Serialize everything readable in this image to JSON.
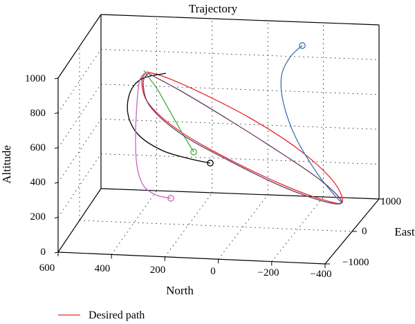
{
  "chart_data": {
    "type": "line",
    "title": "Trajectory",
    "axes": {
      "z_label": "Altitude",
      "x_label": "North",
      "y_label": "East",
      "z_ticks": [
        "0",
        "200",
        "400",
        "600",
        "800",
        "1000"
      ],
      "x_ticks": [
        "600",
        "400",
        "200",
        "0",
        "−200",
        "−400"
      ],
      "y_ticks": [
        "1000",
        "0",
        "−1000"
      ]
    },
    "grid": true,
    "legend": {
      "position": "bottom-left",
      "entries": [
        "Desired path"
      ]
    },
    "series": [
      {
        "name": "Desired path",
        "color": "#e8262a",
        "points": [
          [
            212,
            104
          ],
          [
            240,
            112
          ],
          [
            290,
            134
          ],
          [
            360,
            170
          ],
          [
            430,
            215
          ],
          [
            480,
            260
          ],
          [
            495,
            292
          ],
          [
            470,
            290
          ],
          [
            410,
            268
          ],
          [
            330,
            230
          ],
          [
            260,
            190
          ],
          [
            215,
            150
          ],
          [
            205,
            118
          ],
          [
            212,
            104
          ]
        ]
      },
      {
        "color": "#000000",
        "marker": "circle",
        "marker_at": "end",
        "points": [
          [
            240,
            106
          ],
          [
            205,
            114
          ],
          [
            188,
            134
          ],
          [
            185,
            165
          ],
          [
            200,
            195
          ],
          [
            235,
            218
          ],
          [
            275,
            230
          ],
          [
            304,
            236
          ]
        ]
      },
      {
        "color": "#4aa744",
        "marker": "circle",
        "marker_at": "end",
        "points": [
          [
            208,
            102
          ],
          [
            215,
            112
          ],
          [
            228,
            130
          ],
          [
            245,
            160
          ],
          [
            262,
            190
          ],
          [
            274,
            210
          ],
          [
            280,
            220
          ]
        ]
      },
      {
        "color": "#c565c1",
        "marker": "circle",
        "marker_at": "end",
        "points": [
          [
            212,
            104
          ],
          [
            202,
            116
          ],
          [
            198,
            150
          ],
          [
            196,
            200
          ],
          [
            198,
            240
          ],
          [
            207,
            268
          ],
          [
            225,
            282
          ],
          [
            247,
            287
          ]
        ]
      },
      {
        "color": "#3d6fb5",
        "marker": "circle",
        "marker_at": "start",
        "points": [
          [
            437,
            66
          ],
          [
            420,
            82
          ],
          [
            407,
            110
          ],
          [
            410,
            150
          ],
          [
            428,
            200
          ],
          [
            458,
            250
          ],
          [
            483,
            282
          ],
          [
            495,
            294
          ]
        ]
      },
      {
        "color": "#6b3a63",
        "points": [
          [
            214,
            106
          ],
          [
            262,
            132
          ],
          [
            335,
            176
          ],
          [
            410,
            224
          ],
          [
            465,
            262
          ],
          [
            494,
            292
          ],
          [
            470,
            292
          ],
          [
            408,
            270
          ],
          [
            330,
            232
          ],
          [
            262,
            194
          ],
          [
            217,
            154
          ],
          [
            207,
            120
          ],
          [
            214,
            106
          ]
        ]
      }
    ]
  }
}
